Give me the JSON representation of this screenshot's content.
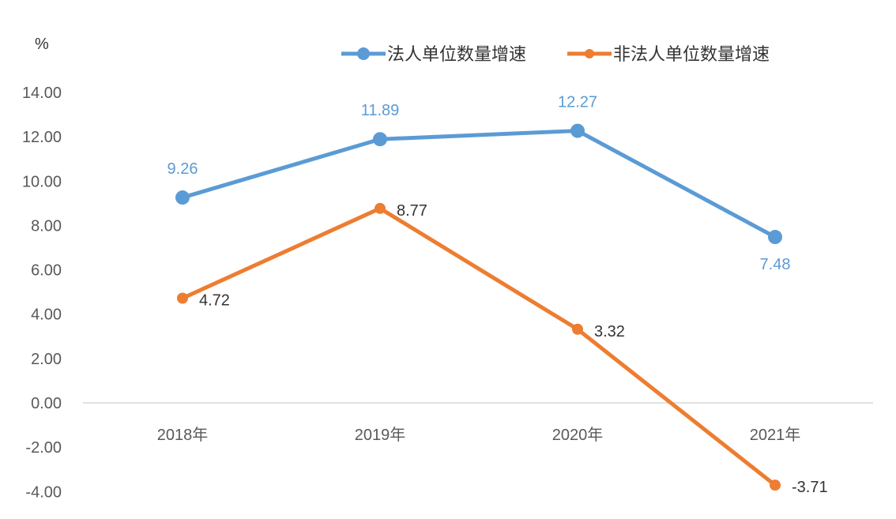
{
  "chart_data": {
    "type": "line",
    "title": "",
    "ylabel": "%",
    "xlabel": "",
    "categories": [
      "2018年",
      "2019年",
      "2020年",
      "2021年"
    ],
    "ylim": [
      -4,
      14
    ],
    "yticks": [
      "14.00",
      "12.00",
      "10.00",
      "8.00",
      "6.00",
      "4.00",
      "2.00",
      "0.00",
      "-2.00",
      "-4.00"
    ],
    "grid": false,
    "legend_position": "top",
    "series": [
      {
        "name": "法人单位数量增速",
        "color": "#5B9BD5",
        "label_color": "#5B9BD5",
        "values": [
          9.26,
          11.89,
          12.27,
          7.48
        ],
        "labels": [
          "9.26",
          "11.89",
          "12.27",
          "7.48"
        ]
      },
      {
        "name": "非法人单位数量增速",
        "color": "#ED7D31",
        "label_color": "#333333",
        "values": [
          4.72,
          8.77,
          3.32,
          -3.71
        ],
        "labels": [
          "4.72",
          "8.77",
          "3.32",
          "-3.71"
        ]
      }
    ]
  }
}
